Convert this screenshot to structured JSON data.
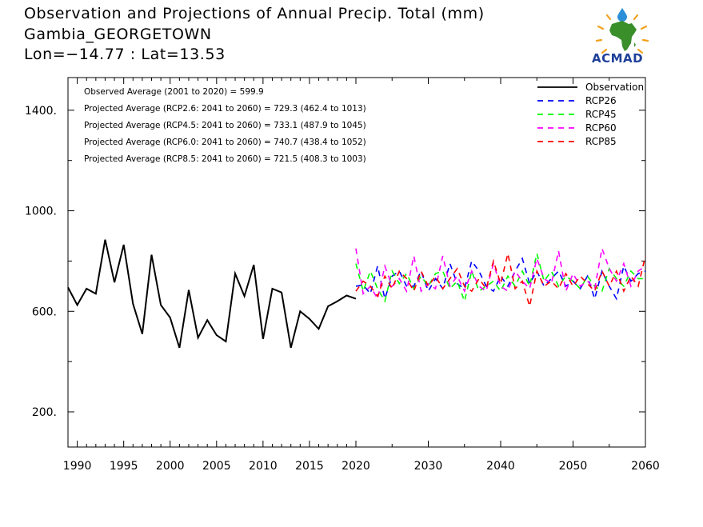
{
  "header": {
    "title": "Observation and Projections of Annual Precip. Total (mm)",
    "station": "Gambia_GEORGETOWN",
    "coords": "Lon=−14.77 : Lat=13.53"
  },
  "logo": {
    "text": "ACMAD",
    "icon": "africa-map-logo"
  },
  "colors": {
    "Observation": "#000000",
    "RCP26": "#0000ff",
    "RCP45": "#00ff00",
    "RCP60": "#ff00ff",
    "RCP85": "#ff0000"
  },
  "chart_data": {
    "type": "line",
    "x_range": [
      1989,
      2060
    ],
    "ylim": [
      60,
      1530
    ],
    "y_ticks": [
      200,
      600,
      1000,
      1400
    ],
    "y_tick_labels": [
      "200.",
      "600.",
      "1000.",
      "1400."
    ],
    "x_ticks_obs": [
      1990,
      1995,
      2000,
      2005,
      2010,
      2015,
      2020
    ],
    "x_ticks_proj": [
      2030,
      2040,
      2050,
      2060
    ],
    "x_ticks_proj_minor": [
      2025,
      2035,
      2045,
      2055
    ],
    "grid": false,
    "legend_position": "top-right",
    "annotations": [
      "Observed Average (2001 to 2020) = 599.9",
      "Projected Average (RCP2.6: 2041 to 2060) = 729.3 (462.4 to 1013)",
      "Projected Average (RCP4.5: 2041 to 2060) = 733.1 (487.9 to 1045)",
      "Projected Average (RCP6.0: 2041 to 2060) = 740.7 (438.4 to 1052)",
      "Projected Average (RCP8.5: 2041 to 2060) = 721.5 (408.3 to 1003)"
    ],
    "series": [
      {
        "name": "Observation",
        "style": "solid",
        "x": [
          1989,
          1990,
          1991,
          1992,
          1993,
          1994,
          1995,
          1996,
          1997,
          1998,
          1999,
          2000,
          2001,
          2002,
          2003,
          2004,
          2005,
          2006,
          2007,
          2008,
          2009,
          2010,
          2011,
          2012,
          2013,
          2014,
          2015,
          2016,
          2017,
          2018,
          2019,
          2020
        ],
        "values": [
          695,
          625,
          690,
          670,
          885,
          715,
          865,
          630,
          510,
          825,
          625,
          575,
          455,
          685,
          495,
          565,
          505,
          480,
          750,
          660,
          785,
          490,
          690,
          675,
          455,
          600,
          570,
          530,
          620,
          640,
          663,
          650
        ]
      },
      {
        "name": "RCP26",
        "style": "dashed",
        "x": [
          2020,
          2021,
          2022,
          2023,
          2024,
          2025,
          2026,
          2027,
          2028,
          2029,
          2030,
          2031,
          2032,
          2033,
          2034,
          2035,
          2036,
          2037,
          2038,
          2039,
          2040,
          2041,
          2042,
          2043,
          2044,
          2045,
          2046,
          2047,
          2048,
          2049,
          2050,
          2051,
          2052,
          2053,
          2054,
          2055,
          2056,
          2057,
          2058,
          2059,
          2060
        ],
        "values": [
          700,
          705,
          670,
          780,
          650,
          740,
          760,
          700,
          700,
          760,
          680,
          730,
          690,
          790,
          710,
          690,
          800,
          760,
          700,
          680,
          740,
          700,
          760,
          810,
          710,
          760,
          700,
          730,
          760,
          700,
          720,
          690,
          740,
          650,
          760,
          700,
          650,
          780,
          720,
          750,
          760
        ]
      },
      {
        "name": "RCP45",
        "style": "dashed",
        "x": [
          2020,
          2021,
          2022,
          2023,
          2024,
          2025,
          2026,
          2027,
          2028,
          2029,
          2030,
          2031,
          2032,
          2033,
          2034,
          2035,
          2036,
          2037,
          2038,
          2039,
          2040,
          2041,
          2042,
          2043,
          2044,
          2045,
          2046,
          2047,
          2048,
          2049,
          2050,
          2051,
          2052,
          2053,
          2054,
          2055,
          2056,
          2057,
          2058,
          2059,
          2060
        ],
        "values": [
          790,
          680,
          760,
          690,
          640,
          760,
          710,
          750,
          690,
          740,
          700,
          750,
          760,
          690,
          720,
          640,
          760,
          680,
          700,
          720,
          680,
          740,
          700,
          760,
          700,
          830,
          720,
          760,
          700,
          740,
          720,
          690,
          740,
          700,
          680,
          770,
          730,
          700,
          760,
          730,
          730
        ]
      },
      {
        "name": "RCP60",
        "style": "dashed",
        "x": [
          2020,
          2021,
          2022,
          2023,
          2024,
          2025,
          2026,
          2027,
          2028,
          2029,
          2030,
          2031,
          2032,
          2033,
          2034,
          2035,
          2036,
          2037,
          2038,
          2039,
          2040,
          2041,
          2042,
          2043,
          2044,
          2045,
          2046,
          2047,
          2048,
          2049,
          2050,
          2051,
          2052,
          2053,
          2054,
          2055,
          2056,
          2057,
          2058,
          2059,
          2060
        ],
        "values": [
          850,
          670,
          700,
          650,
          780,
          700,
          730,
          680,
          820,
          680,
          710,
          690,
          820,
          700,
          740,
          680,
          760,
          700,
          680,
          790,
          700,
          680,
          760,
          720,
          690,
          810,
          730,
          710,
          840,
          680,
          750,
          700,
          720,
          690,
          850,
          770,
          720,
          790,
          700,
          760,
          780
        ]
      },
      {
        "name": "RCP85",
        "style": "dashed",
        "x": [
          2020,
          2021,
          2022,
          2023,
          2024,
          2025,
          2026,
          2027,
          2028,
          2029,
          2030,
          2031,
          2032,
          2033,
          2034,
          2035,
          2036,
          2037,
          2038,
          2039,
          2040,
          2041,
          2042,
          2043,
          2044,
          2045,
          2046,
          2047,
          2048,
          2049,
          2050,
          2051,
          2052,
          2053,
          2054,
          2055,
          2056,
          2057,
          2058,
          2059,
          2060
        ],
        "values": [
          680,
          720,
          700,
          660,
          740,
          690,
          760,
          730,
          680,
          760,
          700,
          740,
          690,
          730,
          770,
          700,
          680,
          730,
          690,
          800,
          710,
          830,
          690,
          720,
          620,
          760,
          700,
          720,
          690,
          750,
          700,
          740,
          710,
          680,
          760,
          700,
          760,
          680,
          740,
          700,
          820
        ]
      }
    ]
  }
}
